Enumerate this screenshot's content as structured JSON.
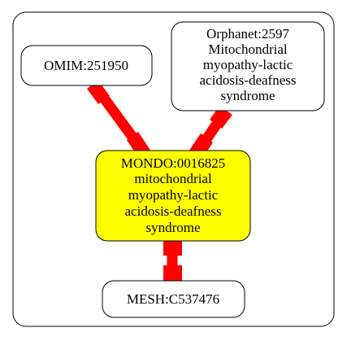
{
  "nodes": {
    "omim": {
      "lines": [
        "OMIM:251950"
      ],
      "fill": "#ffffff"
    },
    "orphanet": {
      "lines": [
        "Orphanet:2597",
        "Mitochondrial",
        "myopathy-lactic",
        "acidosis-deafness",
        "syndrome"
      ],
      "fill": "#ffffff"
    },
    "mondo": {
      "lines": [
        "MONDO:0016825",
        "mitochondrial",
        "myopathy-lactic",
        "acidosis-deafness",
        "syndrome"
      ],
      "fill": "#ffff00"
    },
    "mesh": {
      "lines": [
        "MESH:C537476"
      ],
      "fill": "#ffffff"
    }
  },
  "edges": [
    {
      "from": "omim",
      "to": "mondo"
    },
    {
      "from": "orphanet",
      "to": "mondo"
    },
    {
      "from": "mondo",
      "to": "mesh"
    }
  ],
  "colors": {
    "edge": "#ff0000",
    "stroke": "#000000"
  }
}
